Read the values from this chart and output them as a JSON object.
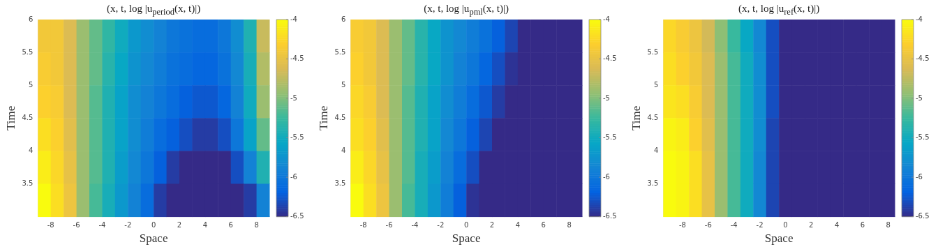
{
  "chart_data": [
    {
      "type": "heatmap",
      "title": "(x, t, log |u$_{period}$(x, t)|)",
      "xlabel": "Space",
      "ylabel": "Time",
      "x": [
        -8.5,
        -7.5,
        -6.5,
        -5.5,
        -4.5,
        -3.5,
        -2.5,
        -1.5,
        -0.5,
        0.5,
        1.5,
        2.5,
        3.5,
        4.5,
        5.5,
        6.5,
        7.5,
        8.5
      ],
      "y": [
        5.75,
        5.25,
        4.75,
        4.25,
        3.75,
        3.25
      ],
      "xlim": [
        -9,
        9
      ],
      "xticks": [
        -8,
        -6,
        -4,
        -2,
        0,
        2,
        4,
        6,
        8
      ],
      "ylim": [
        3,
        6
      ],
      "yticks": [
        3.5,
        4,
        4.5,
        5,
        5.5,
        6
      ],
      "grid": false,
      "clim": [
        -6.5,
        -4
      ],
      "cticks": [
        -6.5,
        -6,
        -5.5,
        -5,
        -4.5,
        -4
      ],
      "cells": [
        [
          -4.4,
          -4.4,
          -4.6,
          -4.9,
          -5.1,
          -5.3,
          -5.5,
          -5.7,
          -5.8,
          -5.9,
          -6.0,
          -6.05,
          -6.1,
          -6.1,
          -6.0,
          -5.8,
          -5.4,
          -4.7
        ],
        [
          -4.35,
          -4.4,
          -4.6,
          -4.9,
          -5.1,
          -5.35,
          -5.55,
          -5.75,
          -5.85,
          -5.95,
          -6.05,
          -6.1,
          -6.15,
          -6.15,
          -6.05,
          -5.85,
          -5.45,
          -4.8
        ],
        [
          -4.3,
          -4.35,
          -4.6,
          -4.9,
          -5.15,
          -5.4,
          -5.6,
          -5.8,
          -5.9,
          -6.0,
          -6.1,
          -6.2,
          -6.25,
          -6.25,
          -6.15,
          -5.9,
          -5.5,
          -4.9
        ],
        [
          -4.2,
          -4.3,
          -4.55,
          -4.9,
          -5.15,
          -5.4,
          -5.6,
          -5.8,
          -5.95,
          -6.1,
          -6.2,
          -6.3,
          -6.4,
          -6.4,
          -6.3,
          -6.0,
          -5.6,
          -5.1
        ],
        [
          -4.1,
          -4.25,
          -4.5,
          -4.9,
          -5.15,
          -5.4,
          -5.65,
          -5.85,
          -6.0,
          -6.2,
          -6.4,
          -6.5,
          -6.5,
          -6.5,
          -6.5,
          -6.3,
          -5.9,
          -5.4
        ],
        [
          -4.0,
          -4.2,
          -4.45,
          -4.9,
          -5.2,
          -5.45,
          -5.7,
          -5.9,
          -6.1,
          -6.4,
          -6.5,
          -6.5,
          -6.5,
          -6.5,
          -6.5,
          -6.5,
          -6.4,
          -5.9
        ]
      ]
    },
    {
      "type": "heatmap",
      "title": "(x, t, log |u$_{pml}$(x, t)|)",
      "xlabel": "Space",
      "ylabel": "Time",
      "x": [
        -8.5,
        -7.5,
        -6.5,
        -5.5,
        -4.5,
        -3.5,
        -2.5,
        -1.5,
        -0.5,
        0.5,
        1.5,
        2.5,
        3.5,
        4.5,
        5.5,
        6.5,
        7.5,
        8.5
      ],
      "y": [
        5.75,
        5.25,
        4.75,
        4.25,
        3.75,
        3.25
      ],
      "xlim": [
        -9,
        9
      ],
      "xticks": [
        -8,
        -6,
        -4,
        -2,
        0,
        2,
        4,
        6,
        8
      ],
      "ylim": [
        3,
        6
      ],
      "yticks": [
        3.5,
        4,
        4.5,
        5,
        5.5,
        6
      ],
      "grid": false,
      "clim": [
        -6.5,
        -4
      ],
      "cticks": [
        -6.5,
        -6,
        -5.5,
        -5,
        -4.5,
        -4
      ],
      "cells": [
        [
          -4.35,
          -4.4,
          -4.6,
          -4.9,
          -5.1,
          -5.35,
          -5.55,
          -5.75,
          -5.85,
          -5.95,
          -6.05,
          -6.2,
          -6.35,
          -6.5,
          -6.5,
          -6.5,
          -6.5,
          -6.5
        ],
        [
          -4.3,
          -4.4,
          -4.6,
          -4.9,
          -5.1,
          -5.35,
          -5.55,
          -5.75,
          -5.9,
          -6.0,
          -6.15,
          -6.3,
          -6.45,
          -6.5,
          -6.5,
          -6.5,
          -6.5,
          -6.5
        ],
        [
          -4.25,
          -4.35,
          -4.6,
          -4.9,
          -5.15,
          -5.4,
          -5.6,
          -5.8,
          -5.95,
          -6.1,
          -6.25,
          -6.4,
          -6.5,
          -6.5,
          -6.5,
          -6.5,
          -6.5,
          -6.5
        ],
        [
          -4.2,
          -4.3,
          -4.55,
          -4.9,
          -5.15,
          -5.4,
          -5.6,
          -5.85,
          -6.0,
          -6.2,
          -6.35,
          -6.5,
          -6.5,
          -6.5,
          -6.5,
          -6.5,
          -6.5,
          -6.5
        ],
        [
          -4.1,
          -4.25,
          -4.5,
          -4.9,
          -5.15,
          -5.45,
          -5.65,
          -5.9,
          -6.1,
          -6.3,
          -6.5,
          -6.5,
          -6.5,
          -6.5,
          -6.5,
          -6.5,
          -6.5,
          -6.5
        ],
        [
          -4.0,
          -4.2,
          -4.45,
          -4.9,
          -5.2,
          -5.45,
          -5.7,
          -5.95,
          -6.2,
          -6.45,
          -6.5,
          -6.5,
          -6.5,
          -6.5,
          -6.5,
          -6.5,
          -6.5,
          -6.5
        ]
      ]
    },
    {
      "type": "heatmap",
      "title": "(x, t, log |u$_{ref}$(x, t)|)",
      "xlabel": "Space",
      "ylabel": "Time",
      "x": [
        -9,
        -8,
        -7,
        -6,
        -5,
        -4,
        -3,
        -2,
        -1,
        0,
        1,
        2,
        3,
        4,
        5,
        6,
        7,
        8
      ],
      "y": [
        5.75,
        5.25,
        4.75,
        4.25,
        3.75,
        3.25
      ],
      "xlim": [
        -9.5,
        8.5
      ],
      "xticks": [
        -8,
        -6,
        -4,
        -2,
        0,
        2,
        4,
        6,
        8
      ],
      "ylim": [
        3,
        6
      ],
      "yticks": [
        3.5,
        4,
        4.5,
        5,
        5.5
      ],
      "grid": false,
      "clim": [
        -6.5,
        -4
      ],
      "cticks": [
        -6.5,
        -6,
        -5.5,
        -5,
        -4.5,
        -4
      ],
      "cells": [
        [
          -4.25,
          -4.35,
          -4.45,
          -4.65,
          -4.95,
          -5.25,
          -5.55,
          -5.85,
          -6.3,
          -6.5,
          -6.5,
          -6.5,
          -6.5,
          -6.5,
          -6.5,
          -6.5,
          -6.5,
          -6.5
        ],
        [
          -4.2,
          -4.3,
          -4.4,
          -4.6,
          -4.9,
          -5.2,
          -5.5,
          -5.8,
          -6.3,
          -6.5,
          -6.5,
          -6.5,
          -6.5,
          -6.5,
          -6.5,
          -6.5,
          -6.5,
          -6.5
        ],
        [
          -4.15,
          -4.2,
          -4.35,
          -4.6,
          -4.9,
          -5.2,
          -5.5,
          -5.8,
          -6.3,
          -6.5,
          -6.5,
          -6.5,
          -6.5,
          -6.5,
          -6.5,
          -6.5,
          -6.5,
          -6.5
        ],
        [
          -4.05,
          -4.1,
          -4.3,
          -4.55,
          -4.9,
          -5.2,
          -5.5,
          -5.8,
          -6.35,
          -6.5,
          -6.5,
          -6.5,
          -6.5,
          -6.5,
          -6.5,
          -6.5,
          -6.5,
          -6.5
        ],
        [
          -4.0,
          -4.05,
          -4.2,
          -4.5,
          -4.9,
          -5.2,
          -5.5,
          -5.85,
          -6.35,
          -6.5,
          -6.5,
          -6.5,
          -6.5,
          -6.5,
          -6.5,
          -6.5,
          -6.5,
          -6.5
        ],
        [
          -4.0,
          -4.05,
          -4.2,
          -4.5,
          -4.9,
          -5.2,
          -5.5,
          -5.85,
          -6.35,
          -6.5,
          -6.5,
          -6.5,
          -6.5,
          -6.5,
          -6.5,
          -6.5,
          -6.5,
          -6.5
        ]
      ]
    }
  ]
}
